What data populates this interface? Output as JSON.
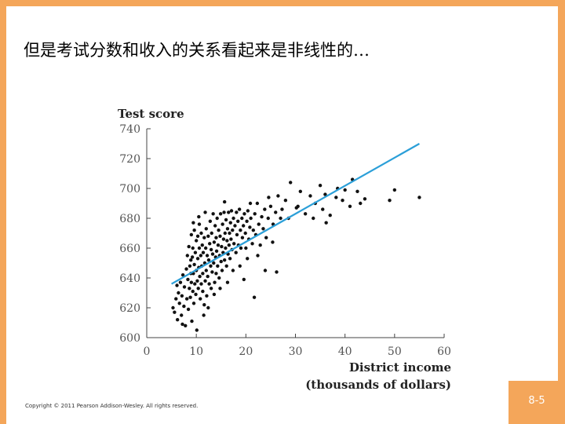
{
  "slide": {
    "title": "但是考试分数和收入的关系看起来是非线性的…",
    "copyright": "Copyright © 2011 Pearson Addison-Wesley. All rights reserved.",
    "page_number": "8-5",
    "colors": {
      "frame": "#f4a65a",
      "background": "#ffffff",
      "regression_line": "#2b9fd8",
      "points": "#111111"
    }
  },
  "chart_data": {
    "type": "scatter",
    "ylabel": "Test score",
    "xlabel_line1": "District income",
    "xlabel_line2": "(thousands of dollars)",
    "xlim": [
      0,
      60
    ],
    "ylim": [
      600,
      740
    ],
    "xticks": [
      "0",
      "10",
      "20",
      "30",
      "40",
      "50",
      "60"
    ],
    "yticks": [
      "600",
      "620",
      "640",
      "660",
      "680",
      "700",
      "720",
      "740"
    ],
    "grid": false,
    "regression_line": {
      "x": [
        5,
        55
      ],
      "y": [
        636,
        730
      ]
    },
    "points": [
      [
        5.3,
        620
      ],
      [
        5.6,
        617
      ],
      [
        5.9,
        626
      ],
      [
        6.2,
        612
      ],
      [
        6.4,
        630
      ],
      [
        6.6,
        623
      ],
      [
        6.8,
        637
      ],
      [
        7.0,
        615
      ],
      [
        7.1,
        628
      ],
      [
        7.3,
        642
      ],
      [
        7.5,
        621
      ],
      [
        7.6,
        634
      ],
      [
        7.8,
        608
      ],
      [
        8.0,
        646
      ],
      [
        8.1,
        626
      ],
      [
        8.2,
        655
      ],
      [
        8.3,
        639
      ],
      [
        8.4,
        619
      ],
      [
        8.5,
        661
      ],
      [
        8.6,
        633
      ],
      [
        8.7,
        648
      ],
      [
        8.8,
        627
      ],
      [
        8.9,
        643
      ],
      [
        9.0,
        669
      ],
      [
        9.0,
        637
      ],
      [
        9.1,
        611
      ],
      [
        9.2,
        654
      ],
      [
        9.3,
        631
      ],
      [
        9.3,
        660
      ],
      [
        9.4,
        643
      ],
      [
        9.5,
        623
      ],
      [
        9.6,
        649
      ],
      [
        9.6,
        672
      ],
      [
        9.7,
        636
      ],
      [
        9.8,
        657
      ],
      [
        9.9,
        629
      ],
      [
        10.0,
        665
      ],
      [
        10.0,
        645
      ],
      [
        10.1,
        605
      ],
      [
        10.2,
        638
      ],
      [
        10.3,
        653
      ],
      [
        10.3,
        668
      ],
      [
        10.4,
        633
      ],
      [
        10.5,
        647
      ],
      [
        10.6,
        660
      ],
      [
        10.6,
        676
      ],
      [
        10.7,
        641
      ],
      [
        10.8,
        626
      ],
      [
        10.9,
        655
      ],
      [
        11.0,
        636
      ],
      [
        11.0,
        670
      ],
      [
        11.1,
        648
      ],
      [
        11.2,
        662
      ],
      [
        11.3,
        631
      ],
      [
        11.3,
        643
      ],
      [
        11.4,
        657
      ],
      [
        11.5,
        615
      ],
      [
        11.6,
        667
      ],
      [
        11.7,
        650
      ],
      [
        11.8,
        638
      ],
      [
        11.9,
        660
      ],
      [
        12.0,
        673
      ],
      [
        12.0,
        645
      ],
      [
        12.1,
        628
      ],
      [
        12.2,
        655
      ],
      [
        12.3,
        641
      ],
      [
        12.4,
        668
      ],
      [
        12.5,
        652
      ],
      [
        12.6,
        636
      ],
      [
        12.7,
        663
      ],
      [
        12.8,
        678
      ],
      [
        12.9,
        648
      ],
      [
        13.0,
        659
      ],
      [
        13.0,
        633
      ],
      [
        13.1,
        670
      ],
      [
        13.2,
        644
      ],
      [
        13.3,
        656
      ],
      [
        13.4,
        683
      ],
      [
        13.5,
        650
      ],
      [
        13.6,
        664
      ],
      [
        13.7,
        637
      ],
      [
        13.8,
        675
      ],
      [
        13.9,
        654
      ],
      [
        14.0,
        643
      ],
      [
        14.0,
        667
      ],
      [
        14.1,
        658
      ],
      [
        14.2,
        680
      ],
      [
        14.3,
        648
      ],
      [
        14.4,
        662
      ],
      [
        14.5,
        672
      ],
      [
        14.6,
        640
      ],
      [
        14.7,
        655
      ],
      [
        14.8,
        668
      ],
      [
        14.9,
        683
      ],
      [
        15.0,
        651
      ],
      [
        15.1,
        661
      ],
      [
        15.2,
        645
      ],
      [
        15.3,
        676
      ],
      [
        15.4,
        657
      ],
      [
        15.5,
        666
      ],
      [
        15.6,
        684
      ],
      [
        15.7,
        652
      ],
      [
        15.8,
        670
      ],
      [
        15.9,
        660
      ],
      [
        16.0,
        679
      ],
      [
        16.1,
        648
      ],
      [
        16.2,
        665
      ],
      [
        16.3,
        673
      ],
      [
        16.4,
        656
      ],
      [
        16.5,
        684
      ],
      [
        16.6,
        662
      ],
      [
        16.7,
        670
      ],
      [
        16.8,
        653
      ],
      [
        16.9,
        677
      ],
      [
        17.0,
        666
      ],
      [
        17.1,
        685
      ],
      [
        17.2,
        659
      ],
      [
        17.3,
        672
      ],
      [
        17.5,
        680
      ],
      [
        17.6,
        663
      ],
      [
        17.8,
        675
      ],
      [
        18.0,
        657
      ],
      [
        18.1,
        684
      ],
      [
        18.2,
        669
      ],
      [
        18.4,
        678
      ],
      [
        18.5,
        662
      ],
      [
        18.7,
        686
      ],
      [
        18.9,
        672
      ],
      [
        19.0,
        660
      ],
      [
        19.2,
        680
      ],
      [
        19.3,
        667
      ],
      [
        19.5,
        675
      ],
      [
        19.7,
        683
      ],
      [
        19.9,
        670
      ],
      [
        20.0,
        660
      ],
      [
        20.2,
        678
      ],
      [
        20.4,
        685
      ],
      [
        20.6,
        666
      ],
      [
        20.8,
        674
      ],
      [
        21.0,
        680
      ],
      [
        21.3,
        663
      ],
      [
        21.5,
        672
      ],
      [
        21.8,
        683
      ],
      [
        22.0,
        669
      ],
      [
        22.3,
        690
      ],
      [
        22.6,
        676
      ],
      [
        22.9,
        662
      ],
      [
        23.2,
        681
      ],
      [
        23.5,
        673
      ],
      [
        23.8,
        686
      ],
      [
        24.1,
        667
      ],
      [
        24.5,
        680
      ],
      [
        25.0,
        688
      ],
      [
        25.5,
        676
      ],
      [
        26.0,
        684
      ],
      [
        26.5,
        695
      ],
      [
        27.0,
        680
      ],
      [
        28.0,
        692
      ],
      [
        29.0,
        704
      ],
      [
        30.5,
        688
      ],
      [
        31.0,
        698
      ],
      [
        32.0,
        683
      ],
      [
        33.0,
        695
      ],
      [
        34.0,
        690
      ],
      [
        35.0,
        702
      ],
      [
        35.5,
        686
      ],
      [
        36.0,
        696
      ],
      [
        37.0,
        682
      ],
      [
        38.5,
        700
      ],
      [
        39.5,
        692
      ],
      [
        40.0,
        699
      ],
      [
        41.0,
        688
      ],
      [
        41.5,
        706
      ],
      [
        42.5,
        698
      ],
      [
        44.0,
        693
      ],
      [
        49.0,
        692
      ],
      [
        50.0,
        699
      ],
      [
        55.0,
        694
      ],
      [
        10.5,
        681
      ],
      [
        11.8,
        684
      ],
      [
        12.4,
        620
      ],
      [
        13.6,
        629
      ],
      [
        14.8,
        633
      ],
      [
        16.3,
        637
      ],
      [
        18.8,
        648
      ],
      [
        19.6,
        639
      ],
      [
        20.3,
        653
      ],
      [
        21.7,
        627
      ],
      [
        22.4,
        655
      ],
      [
        23.9,
        645
      ],
      [
        25.4,
        664
      ],
      [
        26.2,
        644
      ],
      [
        27.3,
        686
      ],
      [
        28.6,
        680
      ],
      [
        30.2,
        687
      ],
      [
        33.6,
        680
      ],
      [
        36.2,
        677
      ],
      [
        38.2,
        694
      ],
      [
        43.1,
        690
      ],
      [
        7.2,
        609
      ],
      [
        8.9,
        652
      ],
      [
        6.1,
        635
      ],
      [
        9.4,
        677
      ],
      [
        11.6,
        622
      ],
      [
        15.7,
        691
      ],
      [
        17.4,
        645
      ],
      [
        20.9,
        690
      ],
      [
        24.6,
        694
      ]
    ]
  }
}
